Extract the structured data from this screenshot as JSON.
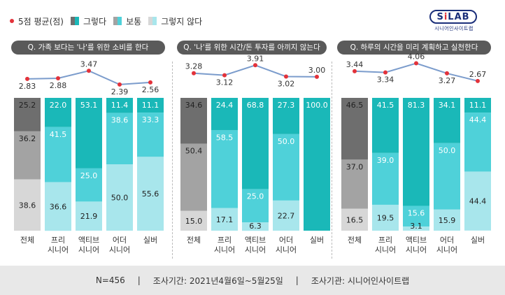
{
  "legend": {
    "mean_label": "5점 평균(점)",
    "items": [
      {
        "label": "그렇다",
        "color": "#1ab8b8"
      },
      {
        "label": "보통",
        "color": "#4fd1d9"
      },
      {
        "label": "그렇지 않다",
        "color": "#a8e6ec"
      }
    ]
  },
  "logo": {
    "main_left": "S",
    "main_i": "i",
    "main_right": "LAB",
    "sub": "시니어인사이트랩"
  },
  "colors": {
    "total_agree": "#6e6e6e",
    "total_neutral": "#a3a3a3",
    "total_disagree": "#d7d7d7",
    "agree": "#1ab8b8",
    "neutral": "#4fd1d9",
    "disagree": "#a8e6ec",
    "mean_line": "#7b9ccc",
    "mean_dot": "#e3323a"
  },
  "chart_data": [
    {
      "type": "bar",
      "title": "Q. 가족 보다는 '나'를 위한 소비를 한다",
      "categories": [
        "전체",
        "프리\n시니어",
        "액티브\n시니어",
        "어더\n시니어",
        "실버"
      ],
      "series": [
        {
          "name": "그렇다",
          "values": [
            25.2,
            22.0,
            53.1,
            11.4,
            11.1
          ]
        },
        {
          "name": "보통",
          "values": [
            36.2,
            41.5,
            25.0,
            38.6,
            33.3
          ]
        },
        {
          "name": "그렇지 않다",
          "values": [
            38.6,
            36.6,
            21.9,
            50.0,
            55.6
          ]
        }
      ],
      "mean": [
        2.83,
        2.88,
        3.47,
        2.39,
        2.56
      ],
      "ylim": [
        0,
        100
      ]
    },
    {
      "type": "bar",
      "title": "Q. '나'를 위한 시간/돈 투자를 아끼지 않는다",
      "categories": [
        "전체",
        "프리\n시니어",
        "액티브\n시니어",
        "어더\n시니어",
        "실버"
      ],
      "series": [
        {
          "name": "그렇다",
          "values": [
            34.6,
            24.4,
            68.8,
            27.3,
            100.0
          ]
        },
        {
          "name": "보통",
          "values": [
            50.4,
            58.5,
            25.0,
            50.0,
            0
          ]
        },
        {
          "name": "그렇지 않다",
          "values": [
            15.0,
            17.1,
            6.3,
            22.7,
            0
          ]
        }
      ],
      "mean": [
        3.28,
        3.12,
        3.91,
        3.02,
        3.0
      ],
      "ylim": [
        0,
        100
      ]
    },
    {
      "type": "bar",
      "title": "Q. 하루의 시간을 미리 계획하고 실천한다",
      "categories": [
        "전체",
        "프리\n시니어",
        "액티브\n시니어",
        "어더\n시니어",
        "실버"
      ],
      "series": [
        {
          "name": "그렇다",
          "values": [
            46.5,
            41.5,
            81.3,
            34.1,
            11.1
          ]
        },
        {
          "name": "보통",
          "values": [
            37.0,
            39.0,
            15.6,
            50.0,
            44.4
          ]
        },
        {
          "name": "그렇지 않다",
          "values": [
            16.5,
            19.5,
            3.1,
            15.9,
            44.4
          ]
        }
      ],
      "mean": [
        3.44,
        3.34,
        4.06,
        3.27,
        2.67
      ],
      "ylim": [
        0,
        100
      ]
    }
  ],
  "footer": {
    "n": "N=456",
    "sep": "|",
    "period": "조사기간: 2021년4월6일~5월25일",
    "org": "조사기관: 시니어인사이트랩"
  }
}
